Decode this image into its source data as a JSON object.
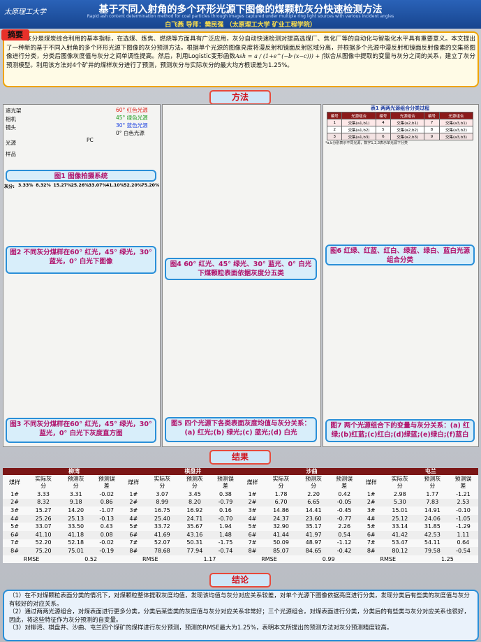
{
  "header": {
    "logo": "太原理工大学",
    "title": "基于不同入射角的多个环形光源下图像的煤颗粒灰分快速检测方法",
    "subtitle": "Rapid ash content determination method for coal particles through images captured under multiple ring light sources with various incident angles",
    "authors": "白飞燕  导师：樊民强 （太原理工大学 矿业工程学院）"
  },
  "abstract": {
    "label": "摘要",
    "text_before": "灰分是煤炭综合利用的基本指标，在选煤、炼焦、燃烧等方面具有广泛应用，灰分自动快速检测对提高选煤厂、焦化厂等的自动化与智能化水平具有重要意义。本文提出了一种新的基于不同入射角的多个环形光源下图像的灰分预测方法。根据单个光源的图像亮度将漫反射和镜面反射区域分离，并根据多个光源中漫反射和镜面反射像素的交集将图像进行分类，分类后图像灰度值与灰分之间单调性提高。然后，利用Logistic变形函数",
    "formula": "Ash = a / (1+e^(−b·(x−c))) + f",
    "text_after": "拟合从图像中提取的变量与灰分之间的关系，建立了灰分预测模型。利用该方法对4个矿井的煤样灰分进行了预测，预测灰分与实际灰分的最大均方根误差为1.25%。"
  },
  "sections": {
    "method": "方法",
    "results": "结果",
    "conclusion": "结论"
  },
  "fig1": {
    "labels_left": [
      "遮光架",
      "相机",
      "镜头",
      "光源",
      "样品"
    ],
    "labels_right": [
      "60° 红色光源",
      "45° 绿色光源",
      "30° 蓝色光源",
      "0° 白色光源"
    ],
    "pc": "PC",
    "caption": "图1 图像拍摄系统"
  },
  "fig2": {
    "ash_label": "灰分:",
    "ash_values": [
      "3.33%",
      "8.32%",
      "15.27%",
      "25.26%",
      "33.07%",
      "41.10%",
      "52.20%",
      "75.20%"
    ],
    "caption": "图2 不同灰分煤样在60° 红光，45° 绿光，30° 蓝光，0° 白光下图像"
  },
  "fig3": {
    "caption": "图3 不同灰分煤样在60° 红光，45° 绿光，30° 蓝光，0° 白光下灰度直方图"
  },
  "fig4": {
    "caption": "图4 60° 红光、45° 绿光、30° 蓝光、0° 白光下煤颗粒表面依据灰度分五类"
  },
  "fig5": {
    "caption": "图5 四个光源下各类表面灰度均值与灰分关系：(a) 红光;(b) 绿光;(c) 蓝光;(d) 白光"
  },
  "table1": {
    "title": "表1 两两光源组合分类过程",
    "columns": [
      "编号",
      "光源组合"
    ],
    "rows": [
      [
        "1",
        "交集(a1,b1)",
        "4",
        "交集(a2,b1)",
        "7",
        "交集(a3,b1)"
      ],
      [
        "2",
        "交集(a1,b2)",
        "5",
        "交集(a2,b2)",
        "8",
        "交集(a3,b2)"
      ],
      [
        "3",
        "交集(a1,b3)",
        "6",
        "交集(a2,b3)",
        "9",
        "交集(a3,b3)"
      ]
    ],
    "note": "*a,b分别表示不同光源，数字1,2,3表示单光源下分类"
  },
  "fig6": {
    "caption": "图6 红绿、红蓝、红白、绿蓝、绿白、蓝白光源组合分类"
  },
  "fig7": {
    "caption": "图7 两个光源组合下的变量与灰分关系：(a) 红绿;(b)红蓝;(c)红白;(d)绿蓝;(e)绿白;(f)蓝白"
  },
  "results": {
    "columns": [
      "煤样",
      "实际灰分",
      "预测灰分",
      "预测误差"
    ],
    "rmse_label": "RMSE",
    "mines": [
      {
        "name": "柳湾",
        "rmse": "0.52",
        "rows": [
          [
            "1#",
            "3.33",
            "3.31",
            "-0.02"
          ],
          [
            "2#",
            "8.32",
            "9.18",
            "0.86"
          ],
          [
            "3#",
            "15.27",
            "14.20",
            "-1.07"
          ],
          [
            "4#",
            "25.26",
            "25.13",
            "-0.13"
          ],
          [
            "5#",
            "33.07",
            "33.50",
            "0.43"
          ],
          [
            "6#",
            "41.10",
            "41.18",
            "0.08"
          ],
          [
            "7#",
            "52.20",
            "52.18",
            "-0.02"
          ],
          [
            "8#",
            "75.20",
            "75.01",
            "-0.19"
          ]
        ]
      },
      {
        "name": "棋盘井",
        "rmse": "1.17",
        "rows": [
          [
            "1#",
            "3.07",
            "3.45",
            "0.38"
          ],
          [
            "2#",
            "8.99",
            "8.20",
            "-0.79"
          ],
          [
            "3#",
            "16.75",
            "16.92",
            "0.16"
          ],
          [
            "4#",
            "25.40",
            "24.71",
            "-0.70"
          ],
          [
            "5#",
            "33.72",
            "35.67",
            "1.94"
          ],
          [
            "6#",
            "41.69",
            "43.16",
            "1.48"
          ],
          [
            "7#",
            "52.07",
            "50.31",
            "-1.75"
          ],
          [
            "8#",
            "78.68",
            "77.94",
            "-0.74"
          ]
        ]
      },
      {
        "name": "沙曲",
        "rmse": "0.99",
        "rows": [
          [
            "1#",
            "1.78",
            "2.20",
            "0.42"
          ],
          [
            "2#",
            "6.70",
            "6.65",
            "-0.05"
          ],
          [
            "3#",
            "14.86",
            "14.41",
            "-0.45"
          ],
          [
            "4#",
            "24.37",
            "23.60",
            "-0.77"
          ],
          [
            "5#",
            "32.90",
            "35.17",
            "2.26"
          ],
          [
            "6#",
            "41.44",
            "41.97",
            "0.54"
          ],
          [
            "7#",
            "50.09",
            "48.97",
            "-1.12"
          ],
          [
            "8#",
            "85.07",
            "84.65",
            "-0.42"
          ]
        ]
      },
      {
        "name": "屯兰",
        "rmse": "1.25",
        "rows": [
          [
            "1#",
            "2.98",
            "1.77",
            "-1.21"
          ],
          [
            "2#",
            "5.30",
            "7.83",
            "2.53"
          ],
          [
            "3#",
            "15.01",
            "14.91",
            "-0.10"
          ],
          [
            "4#",
            "25.12",
            "24.06",
            "-1.05"
          ],
          [
            "5#",
            "33.14",
            "31.85",
            "-1.29"
          ],
          [
            "6#",
            "41.42",
            "42.53",
            "1.11"
          ],
          [
            "7#",
            "53.47",
            "54.11",
            "0.64"
          ],
          [
            "8#",
            "80.12",
            "79.58",
            "-0.54"
          ]
        ]
      }
    ]
  },
  "conclusions": [
    "（1）在不对煤颗粒表面分类的情况下，对煤颗粒整体提取灰度均值，发现该均值与灰分对应关系较差，对单个光源下图像依据亮度进行分类，发现分类后有些类的灰度值与灰分有较好的对应关系。",
    "（2）通过两两光源组合，对煤表面进行更多分类，分类后某些类的灰度值与灰分对应关系非常好；三个光源组合，对煤表面进行分类，分类后的有些类与灰分对应关系也很好，因此，将这些特征作为灰分预测的自变量。",
    "（3）对柳湾、棋盘井、沙曲、屯兰四个煤矿的煤样进行灰分预测，预测的RMSE最大为1.25%，表明本文所提出的预测方法对灰分预测精度较高。"
  ]
}
